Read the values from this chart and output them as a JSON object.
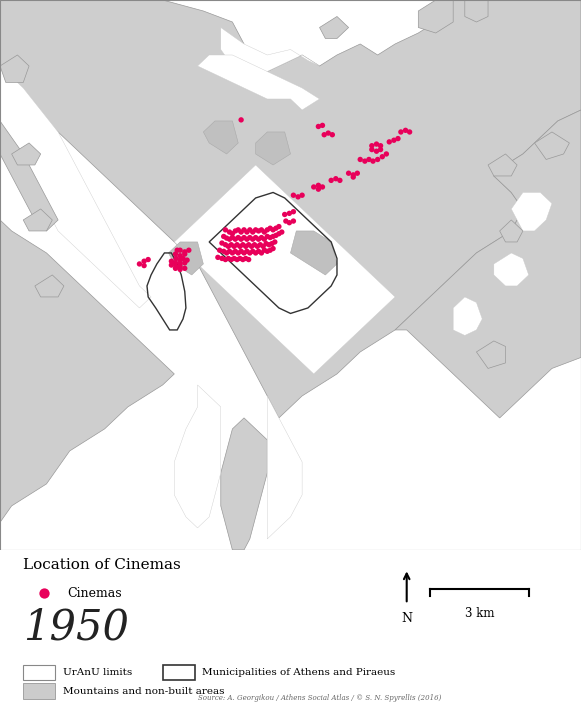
{
  "cinema_color": "#E8005A",
  "land_color": "#CECECE",
  "sea_color": "#FFFFFF",
  "boundary_color": "#444444",
  "legend_title": "Location of Cinemas",
  "legend_cinema_label": "Cinemas",
  "year_label": "1950",
  "legend_uranu": "UrAnU limits",
  "legend_mountain": "Mountains and non-built areas",
  "legend_muni": "Municipalities of Athens and Piraeus",
  "scale_label": "3 km",
  "north_label": "N",
  "source_text": "Source: A. Georgikou / Athens Social Atlas / © S. N. Spyrellis (2016)",
  "cinema_dots": [
    [
      0.388,
      0.418
    ],
    [
      0.395,
      0.422
    ],
    [
      0.4,
      0.425
    ],
    [
      0.405,
      0.42
    ],
    [
      0.41,
      0.418
    ],
    [
      0.415,
      0.422
    ],
    [
      0.42,
      0.418
    ],
    [
      0.425,
      0.422
    ],
    [
      0.43,
      0.418
    ],
    [
      0.435,
      0.422
    ],
    [
      0.44,
      0.418
    ],
    [
      0.445,
      0.42
    ],
    [
      0.45,
      0.418
    ],
    [
      0.455,
      0.422
    ],
    [
      0.46,
      0.418
    ],
    [
      0.465,
      0.415
    ],
    [
      0.47,
      0.418
    ],
    [
      0.475,
      0.415
    ],
    [
      0.48,
      0.412
    ],
    [
      0.385,
      0.43
    ],
    [
      0.39,
      0.433
    ],
    [
      0.395,
      0.435
    ],
    [
      0.4,
      0.432
    ],
    [
      0.405,
      0.435
    ],
    [
      0.41,
      0.432
    ],
    [
      0.415,
      0.435
    ],
    [
      0.42,
      0.432
    ],
    [
      0.425,
      0.435
    ],
    [
      0.43,
      0.432
    ],
    [
      0.435,
      0.435
    ],
    [
      0.44,
      0.432
    ],
    [
      0.445,
      0.435
    ],
    [
      0.45,
      0.432
    ],
    [
      0.455,
      0.435
    ],
    [
      0.46,
      0.43
    ],
    [
      0.465,
      0.432
    ],
    [
      0.47,
      0.43
    ],
    [
      0.475,
      0.428
    ],
    [
      0.48,
      0.425
    ],
    [
      0.485,
      0.422
    ],
    [
      0.382,
      0.442
    ],
    [
      0.388,
      0.445
    ],
    [
      0.393,
      0.448
    ],
    [
      0.398,
      0.445
    ],
    [
      0.403,
      0.448
    ],
    [
      0.408,
      0.445
    ],
    [
      0.413,
      0.448
    ],
    [
      0.418,
      0.445
    ],
    [
      0.423,
      0.448
    ],
    [
      0.428,
      0.445
    ],
    [
      0.433,
      0.448
    ],
    [
      0.438,
      0.445
    ],
    [
      0.443,
      0.448
    ],
    [
      0.448,
      0.445
    ],
    [
      0.453,
      0.448
    ],
    [
      0.458,
      0.443
    ],
    [
      0.463,
      0.445
    ],
    [
      0.468,
      0.443
    ],
    [
      0.473,
      0.44
    ],
    [
      0.378,
      0.455
    ],
    [
      0.385,
      0.457
    ],
    [
      0.39,
      0.46
    ],
    [
      0.395,
      0.457
    ],
    [
      0.4,
      0.46
    ],
    [
      0.405,
      0.457
    ],
    [
      0.41,
      0.46
    ],
    [
      0.415,
      0.457
    ],
    [
      0.42,
      0.46
    ],
    [
      0.425,
      0.457
    ],
    [
      0.43,
      0.46
    ],
    [
      0.435,
      0.457
    ],
    [
      0.44,
      0.46
    ],
    [
      0.445,
      0.457
    ],
    [
      0.45,
      0.46
    ],
    [
      0.455,
      0.455
    ],
    [
      0.46,
      0.457
    ],
    [
      0.465,
      0.455
    ],
    [
      0.47,
      0.452
    ],
    [
      0.375,
      0.468
    ],
    [
      0.382,
      0.47
    ],
    [
      0.388,
      0.472
    ],
    [
      0.393,
      0.47
    ],
    [
      0.398,
      0.472
    ],
    [
      0.403,
      0.47
    ],
    [
      0.408,
      0.472
    ],
    [
      0.413,
      0.47
    ],
    [
      0.418,
      0.472
    ],
    [
      0.423,
      0.47
    ],
    [
      0.428,
      0.472
    ],
    [
      0.31,
      0.455
    ],
    [
      0.318,
      0.458
    ],
    [
      0.325,
      0.455
    ],
    [
      0.318,
      0.462
    ],
    [
      0.31,
      0.465
    ],
    [
      0.302,
      0.462
    ],
    [
      0.305,
      0.455
    ],
    [
      0.315,
      0.47
    ],
    [
      0.322,
      0.473
    ],
    [
      0.31,
      0.473
    ],
    [
      0.303,
      0.47
    ],
    [
      0.318,
      0.478
    ],
    [
      0.31,
      0.48
    ],
    [
      0.302,
      0.478
    ],
    [
      0.295,
      0.475
    ],
    [
      0.31,
      0.485
    ],
    [
      0.303,
      0.485
    ],
    [
      0.295,
      0.482
    ],
    [
      0.318,
      0.488
    ],
    [
      0.31,
      0.49
    ],
    [
      0.302,
      0.488
    ],
    [
      0.24,
      0.48
    ],
    [
      0.248,
      0.475
    ],
    [
      0.255,
      0.472
    ],
    [
      0.248,
      0.483
    ],
    [
      0.505,
      0.355
    ],
    [
      0.513,
      0.358
    ],
    [
      0.52,
      0.355
    ],
    [
      0.54,
      0.34
    ],
    [
      0.548,
      0.337
    ],
    [
      0.555,
      0.34
    ],
    [
      0.548,
      0.344
    ],
    [
      0.57,
      0.328
    ],
    [
      0.578,
      0.325
    ],
    [
      0.585,
      0.328
    ],
    [
      0.6,
      0.315
    ],
    [
      0.608,
      0.318
    ],
    [
      0.615,
      0.315
    ],
    [
      0.608,
      0.322
    ],
    [
      0.62,
      0.29
    ],
    [
      0.628,
      0.293
    ],
    [
      0.635,
      0.29
    ],
    [
      0.642,
      0.293
    ],
    [
      0.65,
      0.29
    ],
    [
      0.658,
      0.285
    ],
    [
      0.665,
      0.28
    ],
    [
      0.64,
      0.272
    ],
    [
      0.648,
      0.275
    ],
    [
      0.655,
      0.272
    ],
    [
      0.64,
      0.265
    ],
    [
      0.648,
      0.262
    ],
    [
      0.655,
      0.265
    ],
    [
      0.67,
      0.258
    ],
    [
      0.678,
      0.255
    ],
    [
      0.685,
      0.252
    ],
    [
      0.69,
      0.24
    ],
    [
      0.698,
      0.237
    ],
    [
      0.705,
      0.24
    ],
    [
      0.558,
      0.245
    ],
    [
      0.565,
      0.242
    ],
    [
      0.572,
      0.245
    ],
    [
      0.548,
      0.23
    ],
    [
      0.555,
      0.228
    ],
    [
      0.49,
      0.39
    ],
    [
      0.498,
      0.388
    ],
    [
      0.505,
      0.385
    ],
    [
      0.492,
      0.402
    ],
    [
      0.498,
      0.405
    ],
    [
      0.505,
      0.402
    ],
    [
      0.415,
      0.218
    ]
  ]
}
